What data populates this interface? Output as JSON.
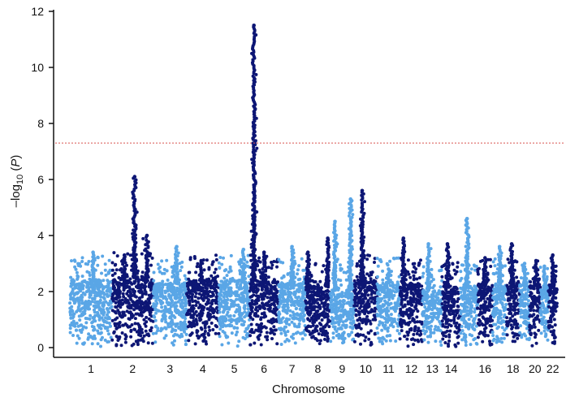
{
  "chart_data": {
    "type": "scatter",
    "subtype": "manhattan",
    "xlabel": "Chromosome",
    "ylabel_parts": {
      "prefix": "–log",
      "sub": "10",
      "suffix": " (",
      "italic": "P",
      "close": ")"
    },
    "ylim": [
      0,
      12
    ],
    "yticks": [
      0,
      2,
      4,
      6,
      8,
      10,
      12
    ],
    "threshold": 7.3,
    "colors": {
      "light": "#5aa6e6",
      "dark": "#0d1675",
      "threshold": "#d9534f",
      "axis": "#111111"
    },
    "grid": false,
    "legend": "none",
    "chromosomes": [
      {
        "chr": "1",
        "label": "1",
        "length": 249,
        "color": "light",
        "base": 2.4,
        "peaks": [
          [
            0.55,
            3.4
          ]
        ]
      },
      {
        "chr": "2",
        "label": "2",
        "length": 243,
        "color": "dark",
        "base": 2.5,
        "peaks": [
          [
            0.55,
            6.1
          ],
          [
            0.85,
            4.0
          ],
          [
            0.3,
            3.3
          ]
        ]
      },
      {
        "chr": "3",
        "label": "3",
        "length": 198,
        "color": "light",
        "base": 2.3,
        "peaks": [
          [
            0.7,
            3.6
          ]
        ]
      },
      {
        "chr": "4",
        "label": "4",
        "length": 190,
        "color": "dark",
        "base": 2.4,
        "peaks": [
          [
            0.45,
            3.1
          ]
        ]
      },
      {
        "chr": "5",
        "label": "5",
        "length": 181,
        "color": "light",
        "base": 2.4,
        "peaks": [
          [
            0.8,
            3.5
          ]
        ]
      },
      {
        "chr": "6",
        "label": "6",
        "length": 171,
        "color": "dark",
        "base": 2.4,
        "peaks": [
          [
            0.15,
            11.5
          ],
          [
            0.5,
            3.4
          ]
        ]
      },
      {
        "chr": "7",
        "label": "7",
        "length": 159,
        "color": "light",
        "base": 2.3,
        "peaks": [
          [
            0.5,
            3.6
          ]
        ]
      },
      {
        "chr": "8",
        "label": "8",
        "length": 146,
        "color": "dark",
        "base": 2.2,
        "peaks": [
          [
            0.1,
            3.4
          ],
          [
            0.9,
            3.9
          ]
        ]
      },
      {
        "chr": "9",
        "label": "9",
        "length": 141,
        "color": "light",
        "base": 2.1,
        "peaks": [
          [
            0.2,
            4.5
          ],
          [
            0.85,
            5.3
          ]
        ]
      },
      {
        "chr": "10",
        "label": "10",
        "length": 136,
        "color": "dark",
        "base": 2.4,
        "peaks": [
          [
            0.35,
            5.6
          ]
        ]
      },
      {
        "chr": "11",
        "label": "11",
        "length": 135,
        "color": "light",
        "base": 2.3,
        "peaks": [
          [
            0.5,
            2.8
          ]
        ]
      },
      {
        "chr": "12",
        "label": "12",
        "length": 133,
        "color": "dark",
        "base": 2.3,
        "peaks": [
          [
            0.15,
            3.9
          ]
        ]
      },
      {
        "chr": "13",
        "label": "13",
        "length": 115,
        "color": "light",
        "base": 2.1,
        "peaks": [
          [
            0.3,
            3.7
          ]
        ]
      },
      {
        "chr": "14",
        "label": "14",
        "length": 107,
        "color": "dark",
        "base": 2.2,
        "peaks": [
          [
            0.3,
            3.7
          ]
        ]
      },
      {
        "chr": "15",
        "label": "",
        "length": 102,
        "color": "light",
        "base": 2.2,
        "peaks": [
          [
            0.4,
            4.6
          ]
        ]
      },
      {
        "chr": "16",
        "label": "16",
        "length": 90,
        "color": "dark",
        "base": 2.3,
        "peaks": [
          [
            0.5,
            3.2
          ]
        ]
      },
      {
        "chr": "17",
        "label": "",
        "length": 81,
        "color": "light",
        "base": 2.3,
        "peaks": [
          [
            0.5,
            3.6
          ]
        ]
      },
      {
        "chr": "18",
        "label": "18",
        "length": 78,
        "color": "dark",
        "base": 2.3,
        "peaks": [
          [
            0.4,
            3.7
          ]
        ]
      },
      {
        "chr": "19",
        "label": "",
        "length": 59,
        "color": "light",
        "base": 2.2,
        "peaks": [
          [
            0.5,
            3.0
          ]
        ]
      },
      {
        "chr": "20",
        "label": "20",
        "length": 63,
        "color": "dark",
        "base": 2.2,
        "peaks": [
          [
            0.6,
            3.1
          ]
        ]
      },
      {
        "chr": "21",
        "label": "",
        "length": 48,
        "color": "light",
        "base": 2.1,
        "peaks": [
          [
            0.5,
            2.9
          ]
        ]
      },
      {
        "chr": "22",
        "label": "22",
        "length": 51,
        "color": "dark",
        "base": 2.2,
        "peaks": [
          [
            0.5,
            3.3
          ]
        ]
      }
    ]
  }
}
